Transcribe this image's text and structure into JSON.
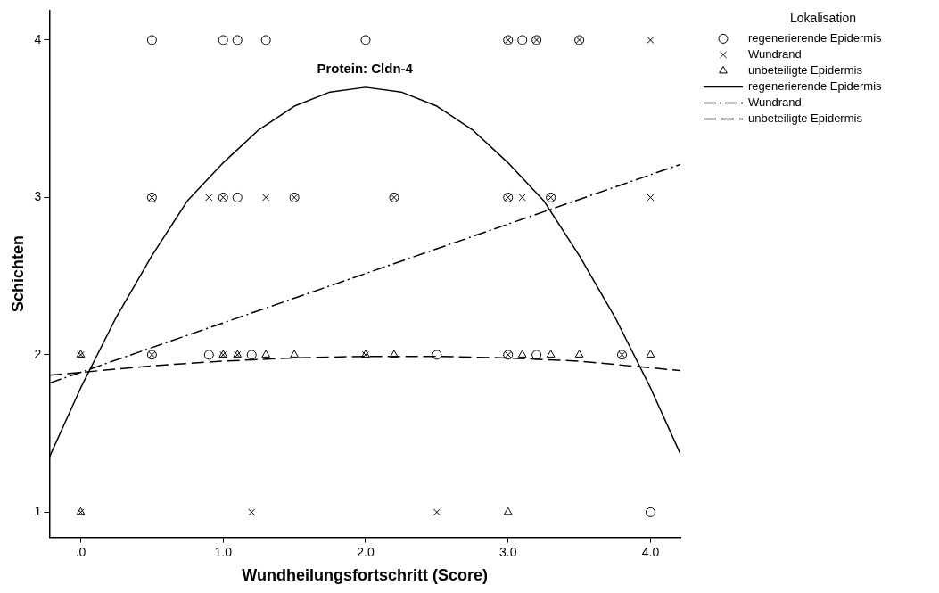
{
  "chart_data": {
    "type": "scatter",
    "title": "Protein: Cldn-4",
    "xlabel": "Wundheilungsfortschritt (Score)",
    "ylabel": "Schichten",
    "legend_title": "Lokalisation",
    "legend": "right",
    "grid": false,
    "xlim": [
      -0.22,
      4.21
    ],
    "ylim": [
      0.84,
      4.19
    ],
    "xticks": [
      {
        "value": 0,
        "label": ".0"
      },
      {
        "value": 1,
        "label": "1.0"
      },
      {
        "value": 2,
        "label": "2.0"
      },
      {
        "value": 3,
        "label": "3.0"
      },
      {
        "value": 4,
        "label": "4.0"
      }
    ],
    "yticks": [
      1,
      2,
      3,
      4
    ],
    "series": [
      {
        "name": "regenerierende Epidermis",
        "color": "#000000",
        "marker": "circle",
        "x": [
          0.5,
          1.0,
          1.1,
          1.3,
          2.0,
          3.0,
          3.1,
          3.2,
          3.5,
          0.5,
          1.0,
          1.1,
          1.5,
          2.2,
          3.0,
          3.3,
          0.5,
          0.9,
          1.2,
          2.5,
          3.0,
          3.2,
          3.8,
          4.0
        ],
        "values": [
          4,
          4,
          4,
          4,
          4,
          4,
          4,
          4,
          4,
          3,
          3,
          3,
          3,
          3,
          3,
          3,
          2,
          2,
          2,
          2,
          2,
          2,
          2,
          1
        ]
      },
      {
        "name": "Wundrand",
        "color": "#000000",
        "marker": "cross",
        "x": [
          3.0,
          3.2,
          3.5,
          4.0,
          0.5,
          0.9,
          1.0,
          1.3,
          1.5,
          2.2,
          3.0,
          3.1,
          3.3,
          4.0,
          0.0,
          0.5,
          1.0,
          1.1,
          2.0,
          3.0,
          3.8,
          0.0,
          1.2,
          2.5
        ],
        "values": [
          4,
          4,
          4,
          4,
          3,
          3,
          3,
          3,
          3,
          3,
          3,
          3,
          3,
          3,
          2,
          2,
          2,
          2,
          2,
          2,
          2,
          1,
          1,
          1
        ]
      },
      {
        "name": "unbeteiligte Epidermis",
        "color": "#000000",
        "marker": "triangle",
        "x": [
          0.0,
          1.0,
          1.1,
          1.3,
          1.5,
          2.0,
          2.2,
          3.1,
          3.3,
          3.5,
          4.0,
          0.0,
          3.0
        ],
        "values": [
          2,
          2,
          2,
          2,
          2,
          2,
          2,
          2,
          2,
          2,
          2,
          1,
          1
        ]
      },
      {
        "name": "regenerierende Epidermis",
        "type": "line",
        "color": "#000000",
        "line_style": "solid",
        "marker": "none",
        "x": [
          -0.22,
          0.0,
          0.25,
          0.5,
          0.75,
          1.0,
          1.25,
          1.5,
          1.75,
          2.0,
          2.25,
          2.5,
          2.75,
          3.0,
          3.25,
          3.5,
          3.75,
          4.0,
          4.21
        ],
        "values": [
          1.35,
          1.79,
          2.24,
          2.63,
          2.98,
          3.22,
          3.43,
          3.58,
          3.67,
          3.7,
          3.67,
          3.58,
          3.43,
          3.22,
          2.98,
          2.63,
          2.24,
          1.79,
          1.37
        ]
      },
      {
        "name": "Wundrand",
        "type": "line",
        "color": "#000000",
        "line_style": "dashdot",
        "marker": "none",
        "x": [
          -0.22,
          4.21
        ],
        "values": [
          1.82,
          3.21
        ]
      },
      {
        "name": "unbeteiligte Epidermis",
        "type": "line",
        "color": "#000000",
        "line_style": "dashed",
        "marker": "none",
        "x": [
          -0.22,
          0.5,
          1.0,
          1.5,
          2.0,
          2.5,
          3.0,
          3.5,
          4.21
        ],
        "values": [
          1.87,
          1.93,
          1.96,
          1.98,
          1.99,
          1.99,
          1.98,
          1.96,
          1.9
        ]
      }
    ]
  }
}
